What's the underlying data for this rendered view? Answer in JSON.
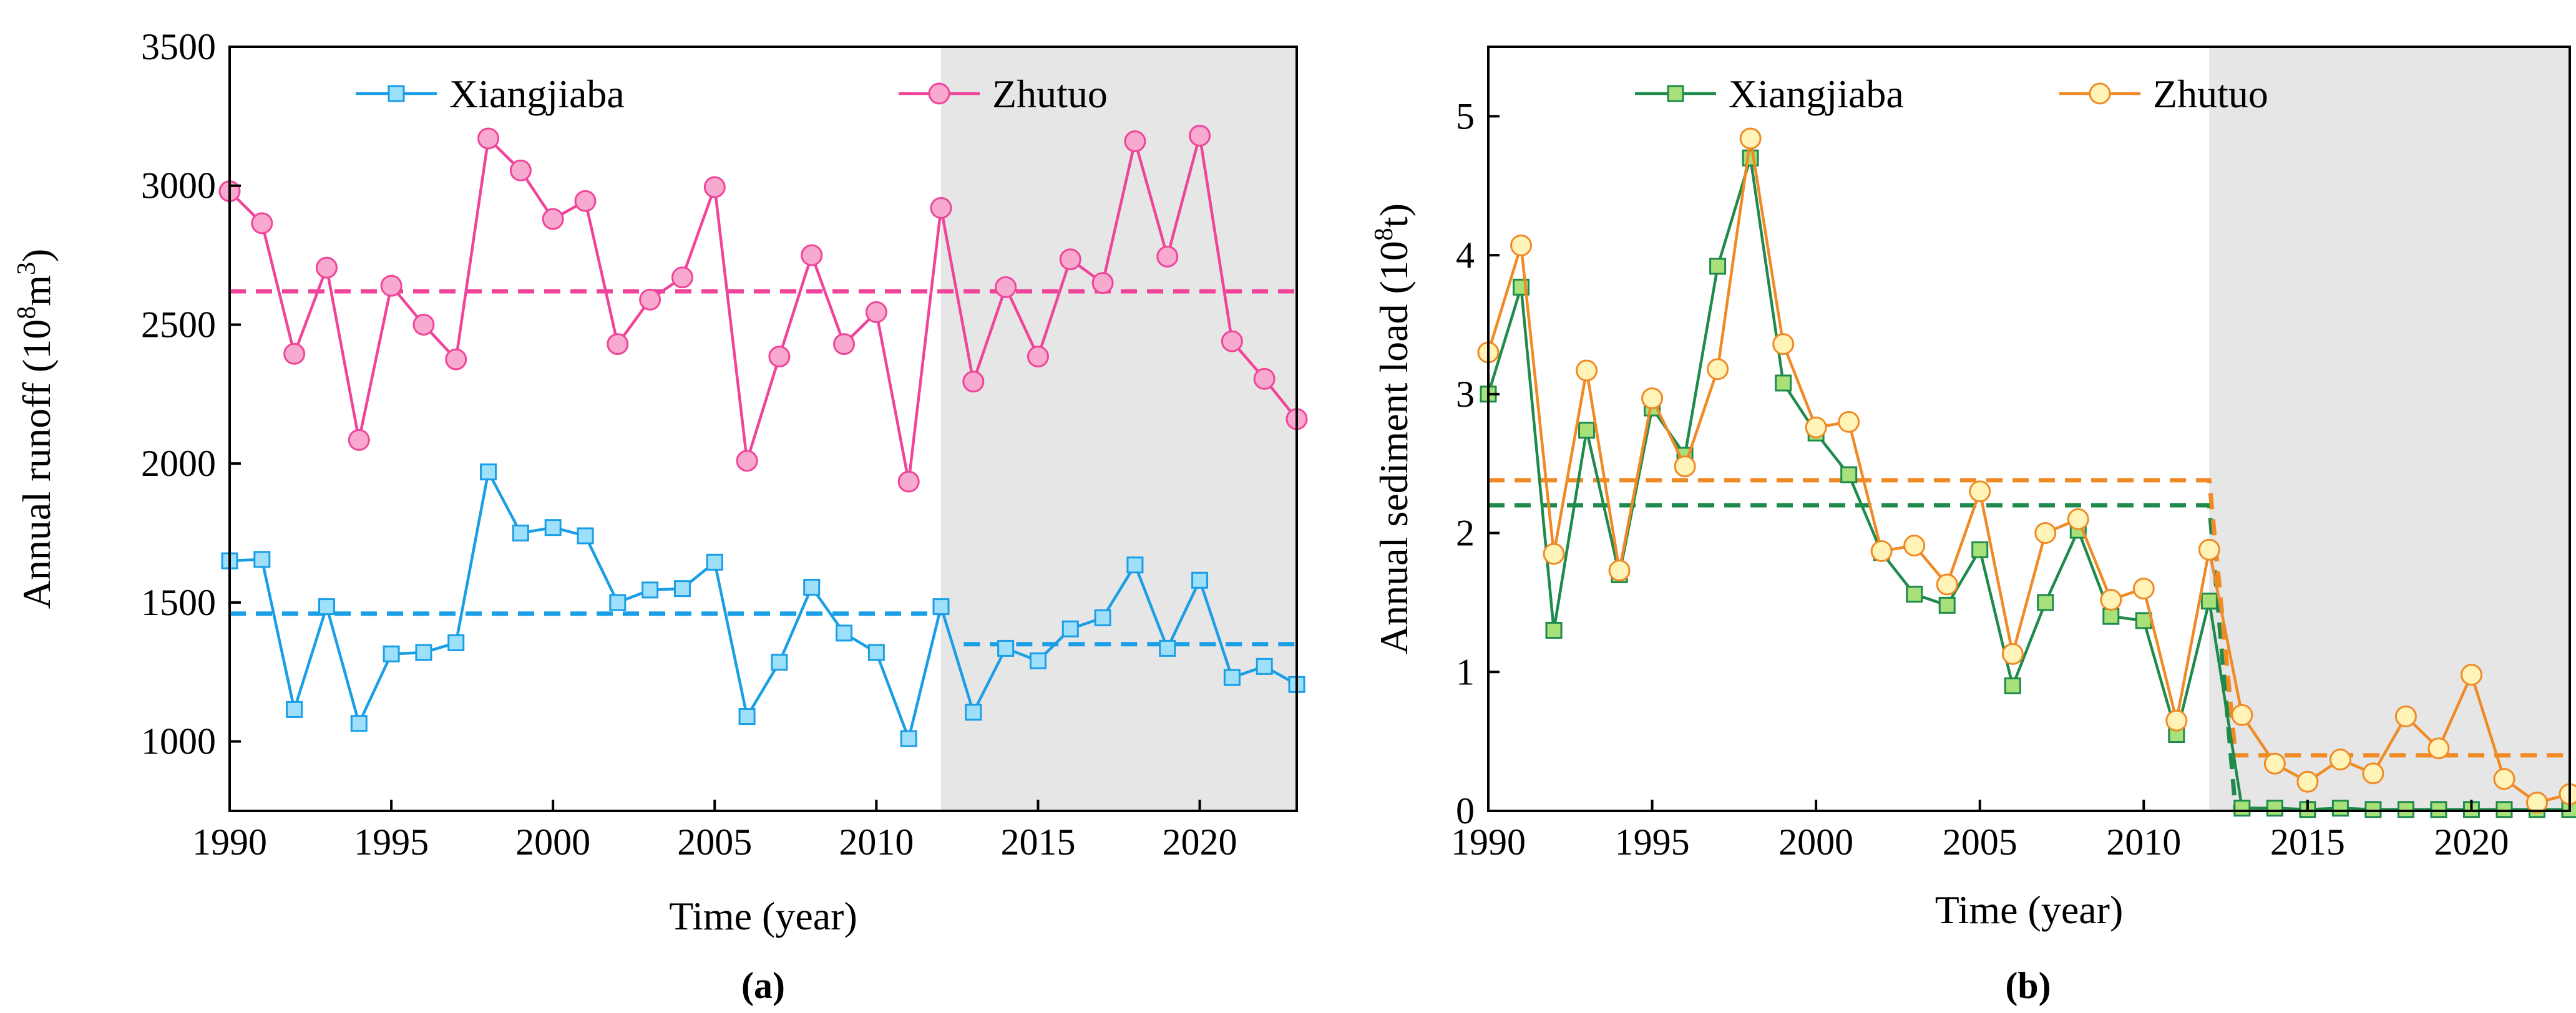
{
  "chart_data": [
    {
      "type": "line",
      "panel_label": "(a)",
      "xlabel": "Time (year)",
      "ylabel_main": "Annual runoff (10",
      "ylabel_sup": "8",
      "ylabel_unit": "m",
      "ylabel_sup2": "3",
      "ylabel_close": ")",
      "xlim": [
        1990,
        2023
      ],
      "ylim": [
        750,
        3500
      ],
      "xticks": [
        1990,
        1995,
        2000,
        2005,
        2010,
        2015,
        2020
      ],
      "yticks": [
        1000,
        1500,
        2000,
        2500,
        3000,
        3500
      ],
      "shade_start": 2012,
      "x": [
        1990,
        1991,
        1992,
        1993,
        1994,
        1995,
        1996,
        1997,
        1998,
        1999,
        2000,
        2001,
        2002,
        2003,
        2004,
        2005,
        2006,
        2007,
        2008,
        2009,
        2010,
        2011,
        2012,
        2013,
        2014,
        2015,
        2016,
        2017,
        2018,
        2019,
        2020,
        2021,
        2022,
        2023
      ],
      "series": [
        {
          "name": "Xiangjiaba",
          "color": "#1a9ee6",
          "fill": "#9ee0fa",
          "marker": "square",
          "values": [
            1650,
            1655,
            1115,
            1485,
            1065,
            1315,
            1320,
            1355,
            1970,
            1750,
            1770,
            1740,
            1500,
            1545,
            1550,
            1645,
            1090,
            1285,
            1555,
            1390,
            1320,
            1010,
            1485,
            1105,
            1335,
            1290,
            1405,
            1445,
            1635,
            1335,
            1580,
            1230,
            1270,
            1205
          ],
          "means": [
            {
              "from": 1990,
              "to": 2012,
              "value": 1460
            },
            {
              "from": 2012.7,
              "to": 2023,
              "value": 1350
            }
          ]
        },
        {
          "name": "Zhutuo",
          "color": "#f0449a",
          "fill": "#f7a9cf",
          "marker": "circle",
          "values": [
            2980,
            2865,
            2395,
            2705,
            2085,
            2640,
            2500,
            2375,
            3170,
            3055,
            2880,
            2945,
            2430,
            2590,
            2670,
            2995,
            2010,
            2385,
            2750,
            2430,
            2545,
            1935,
            2920,
            2295,
            2635,
            2385,
            2735,
            2650,
            3160,
            2745,
            3180,
            2440,
            2305,
            2160
          ],
          "means": [
            {
              "from": 1990,
              "to": 2023,
              "value": 2620
            }
          ]
        }
      ]
    },
    {
      "type": "line",
      "panel_label": "(b)",
      "xlabel": "Time (year)",
      "ylabel_main": "Annual sediment load (10",
      "ylabel_sup": "8",
      "ylabel_unit": "t",
      "ylabel_sup2": "",
      "ylabel_close": ")",
      "xlim": [
        1990,
        2023
      ],
      "ylim": [
        0,
        5.5
      ],
      "xticks": [
        1990,
        1995,
        2000,
        2005,
        2010,
        2015,
        2020
      ],
      "yticks": [
        0,
        1,
        2,
        3,
        4,
        5
      ],
      "shade_start": 2012,
      "x": [
        1990,
        1991,
        1992,
        1993,
        1994,
        1995,
        1996,
        1997,
        1998,
        1999,
        2000,
        2001,
        2002,
        2003,
        2004,
        2005,
        2006,
        2007,
        2008,
        2009,
        2010,
        2011,
        2012,
        2013,
        2014,
        2015,
        2016,
        2017,
        2018,
        2019,
        2020,
        2021,
        2022,
        2023
      ],
      "series": [
        {
          "name": "Xiangjiaba",
          "color": "#1e8a4c",
          "fill": "#a8e07a",
          "marker": "square",
          "values": [
            3.0,
            3.77,
            1.3,
            2.74,
            1.7,
            2.9,
            2.56,
            3.92,
            4.7,
            3.08,
            2.72,
            2.42,
            1.86,
            1.56,
            1.48,
            1.88,
            0.9,
            1.5,
            2.02,
            1.4,
            1.37,
            0.55,
            1.51,
            0.02,
            0.02,
            0.01,
            0.02,
            0.01,
            0.01,
            0.01,
            0.01,
            0.01,
            0.01,
            0.01
          ],
          "means": [
            {
              "from": 1990,
              "to": 2012,
              "value": 2.2,
              "drop_to": 0.01
            }
          ]
        },
        {
          "name": "Zhutuo",
          "color": "#f08a24",
          "fill": "#fff3b8",
          "marker": "circle",
          "values": [
            3.3,
            4.07,
            1.85,
            3.17,
            1.73,
            2.97,
            2.48,
            3.18,
            4.84,
            3.36,
            2.76,
            2.8,
            1.87,
            1.91,
            1.63,
            2.3,
            1.13,
            2.0,
            2.1,
            1.52,
            1.6,
            0.65,
            1.88,
            0.69,
            0.34,
            0.21,
            0.37,
            0.27,
            0.68,
            0.45,
            0.98,
            0.23,
            0.06,
            0.12
          ],
          "means": [
            {
              "from": 1990,
              "to": 2012,
              "value": 2.38,
              "drop_to": 0.4
            },
            {
              "from": 2012.7,
              "to": 2023,
              "value": 0.4
            }
          ]
        }
      ]
    }
  ]
}
